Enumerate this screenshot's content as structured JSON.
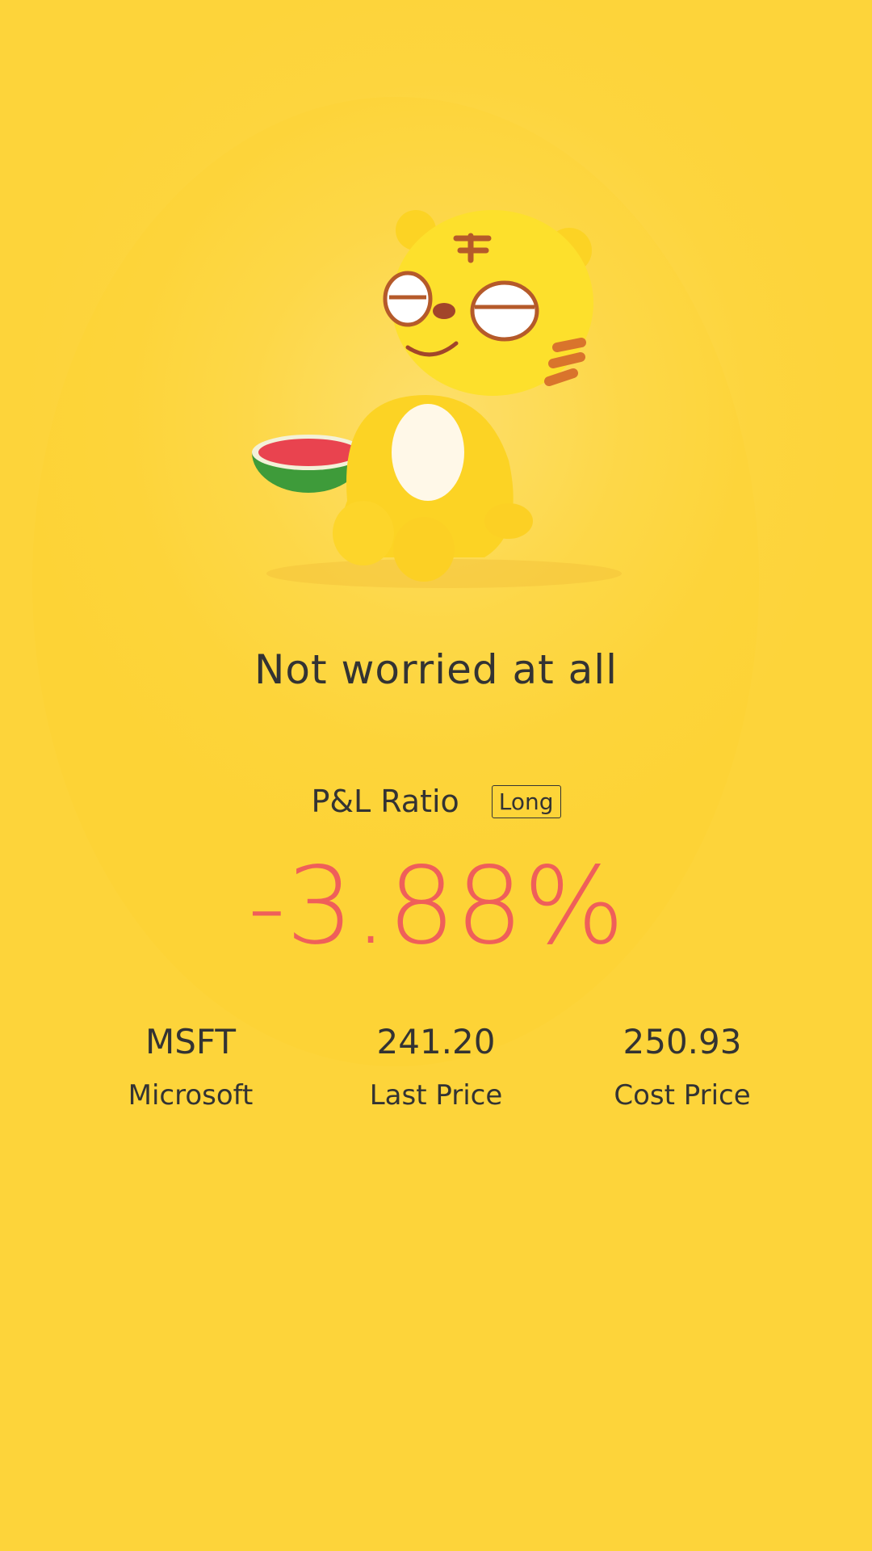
{
  "mood": "Not worried at all",
  "pl": {
    "label": "P&L Ratio",
    "direction": "Long",
    "ratio": "-3.88%"
  },
  "stats": [
    {
      "value": "MSFT",
      "label": "Microsoft"
    },
    {
      "value": "241.20",
      "label": "Last Price"
    },
    {
      "value": "250.93",
      "label": "Cost Price"
    }
  ],
  "colors": {
    "background": "#fdd53e",
    "loss": "#ef5f5a",
    "text": "#333333"
  },
  "icons": {
    "mascot": "tiger-mascot-with-watermelon"
  }
}
